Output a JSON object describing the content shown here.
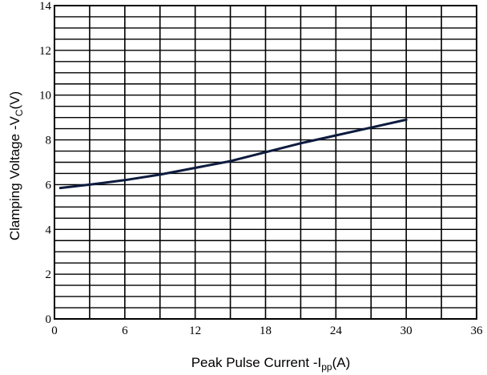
{
  "chart_data": {
    "type": "line",
    "xlabel": {
      "main": "Peak Pulse Current   -I",
      "sub": "pp",
      "unit": "(A)"
    },
    "ylabel": {
      "main": "Clamping Voltage -V",
      "sub": "C",
      "unit": "(V)"
    },
    "xlim": [
      0,
      36
    ],
    "ylim": [
      0,
      14
    ],
    "xticks": [
      0,
      6,
      12,
      18,
      24,
      30,
      36
    ],
    "yticks": [
      0,
      2,
      4,
      6,
      8,
      10,
      12,
      14
    ],
    "x_minor_step": 3,
    "y_minor_step": 0.5,
    "grid": true,
    "line_color": "#0d1b3e",
    "series": [
      {
        "x": [
          0.5,
          3,
          6,
          9,
          12,
          15,
          18,
          21,
          24,
          27,
          30
        ],
        "y": [
          5.85,
          6.0,
          6.2,
          6.45,
          6.75,
          7.05,
          7.45,
          7.85,
          8.2,
          8.55,
          8.9
        ]
      }
    ]
  }
}
